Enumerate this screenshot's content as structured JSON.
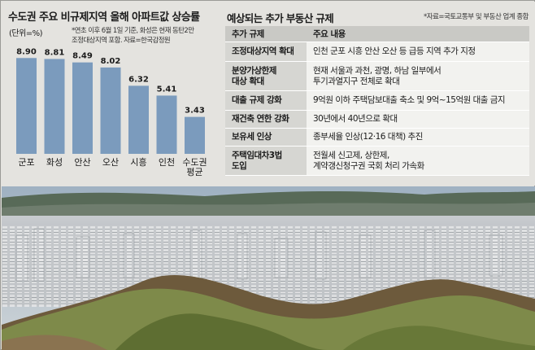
{
  "chart": {
    "title": "수도권 주요 비규제지역 올해 아파트값 상승률",
    "unit": "(단위=%)",
    "note_line1": "*연초 이후 6월 1일 기준, 화성은 현재 동탄2만",
    "note_line2": "조정대상지역 포함. 자료=한국감정원"
  },
  "chart_data": {
    "type": "bar",
    "title": "수도권 주요 비규제지역 올해 아파트값 상승률",
    "ylabel": "(단위=%)",
    "categories": [
      "군포",
      "화성",
      "안산",
      "오산",
      "시흥",
      "인천",
      "수도권 평균"
    ],
    "values": [
      8.9,
      8.81,
      8.49,
      8.02,
      6.32,
      5.41,
      3.43
    ],
    "value_labels": [
      "8.90",
      "8.81",
      "8.49",
      "8.02",
      "6.32",
      "5.41",
      "3.43"
    ],
    "ylim": [
      0,
      9.6
    ],
    "grid": false,
    "bar_color": "#7b9bbd"
  },
  "table": {
    "title": "예상되는 추가 부동산 규제",
    "source": "*자료=국토교통부 및 부동산 업계 종합",
    "header": [
      "추가 규제",
      "주요 내용"
    ],
    "rows": [
      {
        "cat": [
          "조정대상지역 확대"
        ],
        "desc": [
          "인천 군포 시흥 안산 오산 등 급등 지역 추가 지정"
        ]
      },
      {
        "cat": [
          "분양가상한제",
          "대상 확대"
        ],
        "desc": [
          "현재 서울과 과천, 광명, 하남 일부에서",
          "투기과열지구 전체로 확대"
        ]
      },
      {
        "cat": [
          "대출 규제 강화"
        ],
        "desc": [
          "9억원 이하 주택담보대출 축소 및 9억~15억원 대출 금지"
        ]
      },
      {
        "cat": [
          "재건축 연한 강화"
        ],
        "desc": [
          "30년에서 40년으로 확대"
        ]
      },
      {
        "cat": [
          "보유세 인상"
        ],
        "desc": [
          "종부세율 인상(12·16 대책) 추진"
        ]
      },
      {
        "cat": [
          "주택임대차3법",
          "도입"
        ],
        "desc": [
          "전월세 신고제, 상한제,",
          "계약갱신청구권 국회 처리 가속화"
        ]
      }
    ]
  },
  "colors": {
    "background": "#e4e3df",
    "bar": "#7b9bbd",
    "table_header": "#c9c9c5",
    "table_cat": "#d6d6d2",
    "table_desc": "#f2f2ef"
  }
}
